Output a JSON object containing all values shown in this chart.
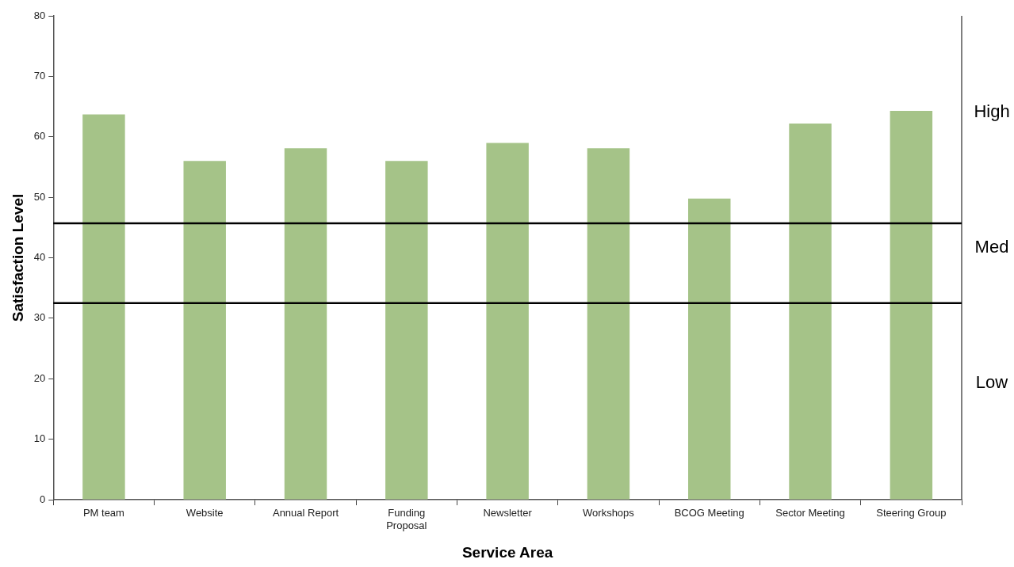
{
  "chart_data": {
    "type": "bar",
    "xlabel": "Service Area",
    "ylabel": "Satisfaction Level",
    "categories": [
      "PM team",
      "Website",
      "Annual Report",
      "Funding Proposal",
      "Newsletter",
      "Workshops",
      "BCOG Meeting",
      "Sector Meeting",
      "Steering Group"
    ],
    "values": [
      63.7,
      56.0,
      58.1,
      56.0,
      59.0,
      58.1,
      49.8,
      62.2,
      64.3
    ],
    "color": "#a5c388",
    "ylim": [
      0,
      80
    ],
    "yticks": [
      0,
      10,
      20,
      30,
      40,
      50,
      60,
      70,
      80
    ],
    "grid": false,
    "legend": false,
    "ref_lines": [
      {
        "axis": "y",
        "value": 45.7,
        "color": "#000000"
      },
      {
        "axis": "y",
        "value": 32.5,
        "color": "#000000"
      }
    ],
    "annotations": [
      "High",
      "Med",
      "Low"
    ]
  }
}
